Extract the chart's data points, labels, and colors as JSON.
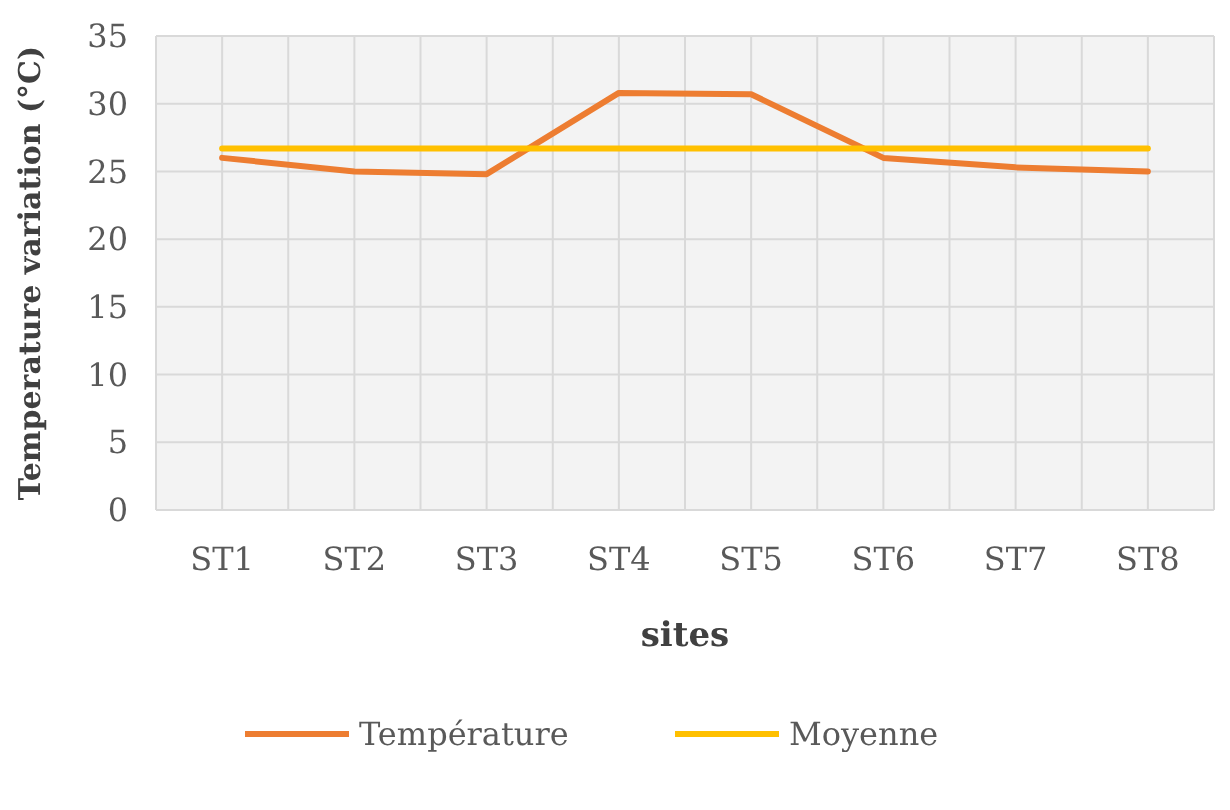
{
  "chart_data": {
    "type": "line",
    "xlabel": "sites",
    "ylabel": "Temperature variation (°C)",
    "categories": [
      "ST1",
      "ST2",
      "ST3",
      "ST4",
      "ST5",
      "ST6",
      "ST7",
      "ST8"
    ],
    "series": [
      {
        "name": "Température",
        "color": "#ed7d31",
        "values": [
          26,
          25,
          24.8,
          30.8,
          30.7,
          26,
          25.3,
          25
        ]
      },
      {
        "name": "Moyenne",
        "color": "#ffc000",
        "values": [
          26.7,
          26.7,
          26.7,
          26.7,
          26.7,
          26.7,
          26.7,
          26.7
        ]
      }
    ],
    "ylim": [
      0,
      35
    ],
    "yticks": [
      0,
      5,
      10,
      15,
      20,
      25,
      30,
      35
    ],
    "grid": true,
    "legend": "bottom",
    "marker": "none",
    "line_style": "solid"
  }
}
